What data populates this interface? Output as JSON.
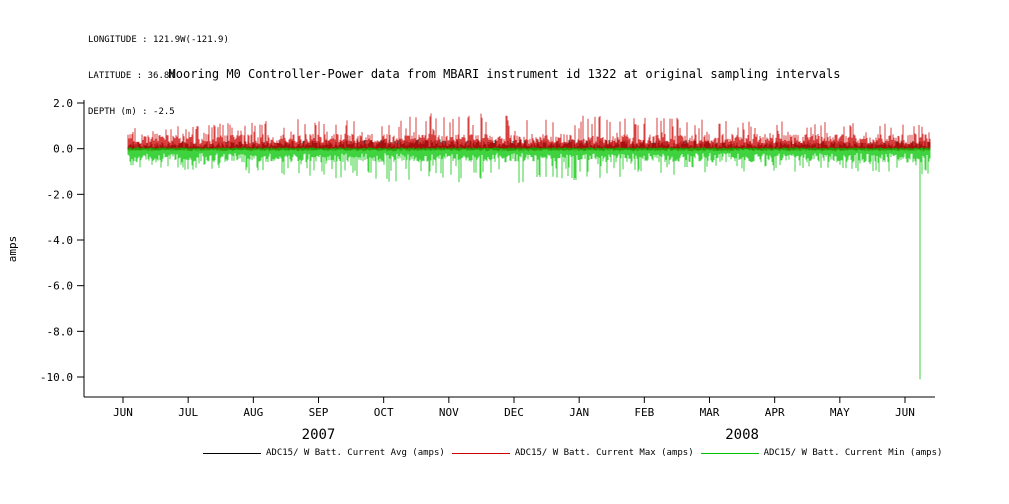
{
  "header": {
    "longitude_label": "LONGITUDE : 121.9W(-121.9)",
    "latitude_label": "LATITUDE : 36.8N",
    "depth_label": "DEPTH (m) : -2.5"
  },
  "chart_data": {
    "type": "line",
    "title": "Mooring M0 Controller-Power data from MBARI instrument id 1322 at original sampling intervals",
    "ylabel": "amps",
    "xlabel": "",
    "ylim": [
      -10.0,
      2.0
    ],
    "yticks": [
      2.0,
      0.0,
      -2.0,
      -4.0,
      -6.0,
      -8.0,
      -10.0
    ],
    "x_tick_labels": [
      "JUN",
      "JUL",
      "AUG",
      "SEP",
      "OCT",
      "NOV",
      "DEC",
      "JAN",
      "FEB",
      "MAR",
      "APR",
      "MAY",
      "JUN"
    ],
    "year_labels": [
      {
        "text": "2007",
        "from_tick": 0,
        "to_tick": 6
      },
      {
        "text": "2008",
        "from_tick": 7,
        "to_tick": 12
      }
    ],
    "grid": false,
    "legend_position": "bottom",
    "series": [
      {
        "name": "ADC15/ W Batt. Current Avg (amps)",
        "color": "#000000",
        "description": "average battery current, dense noise band just above zero",
        "monthly_envelope_upper": [
          0.3,
          0.32,
          0.35,
          0.38,
          0.4,
          0.42,
          0.4,
          0.4,
          0.38,
          0.36,
          0.35,
          0.33,
          0.33
        ],
        "monthly_envelope_lower": [
          -0.08,
          -0.08,
          -0.08,
          -0.08,
          -0.08,
          -0.08,
          -0.08,
          -0.08,
          -0.08,
          -0.08,
          -0.08,
          -0.08,
          -0.08
        ]
      },
      {
        "name": "ADC15/ W Batt. Current Max (amps)",
        "color": "#cc0000",
        "description": "maximum battery current, noisy band 0 to ~0.7 with spikes to ~1.6",
        "monthly_envelope_upper": [
          0.9,
          1.0,
          1.2,
          1.35,
          1.4,
          1.6,
          1.55,
          1.45,
          1.4,
          1.35,
          1.25,
          1.15,
          1.1
        ],
        "monthly_envelope_lower": [
          -0.12,
          -0.12,
          -0.12,
          -0.12,
          -0.12,
          -0.12,
          -0.12,
          -0.12,
          -0.12,
          -0.12,
          -0.12,
          -0.12,
          -0.12
        ]
      },
      {
        "name": "ADC15/ W Batt. Current Min (amps)",
        "color": "#00c400",
        "description": "minimum battery current, noisy band 0 to ~-0.7 with dips to ~-1.6",
        "monthly_envelope_upper": [
          0.06,
          0.06,
          0.06,
          0.06,
          0.06,
          0.06,
          0.06,
          0.06,
          0.06,
          0.06,
          0.06,
          0.06,
          0.06
        ],
        "monthly_envelope_lower": [
          -0.8,
          -0.95,
          -1.1,
          -1.25,
          -1.45,
          -1.6,
          -1.5,
          -1.4,
          -1.2,
          -1.1,
          -1.05,
          -1.0,
          -1.1
        ],
        "anomaly": {
          "value": -10.1,
          "month_index": 12.23,
          "note": "single deep dropout to -10.1 amps in mid JUN 2008"
        }
      }
    ]
  }
}
